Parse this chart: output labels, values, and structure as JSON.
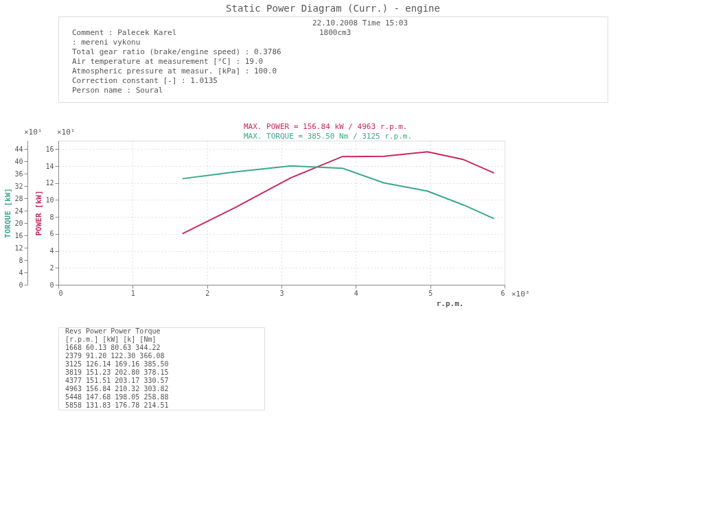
{
  "chart_data": {
    "type": "line",
    "title": "Static Power Diagram (Curr.) - engine",
    "annotations": [
      "22.10.2008   Time 15:03",
      "1800cm3",
      "Comment : Palecek Karel",
      "        : mereni vykonu",
      "Total gear ratio (brake/engine speed) :   0.3786",
      "Air temperature at measurement   [°C] :   19.0",
      "Atmospheric pressure at measur. [kPa] :  100.0",
      "Correction constant              [-] :   1.0135",
      "Person name : Soural",
      "MAX. POWER = 156.84 kW / 4963 r.p.m.",
      "MAX. TORQUE = 385.50 Nm / 3125 r.p.m.",
      "×10¹",
      "×10¹",
      "×10³",
      "   Revs    Power   Power   Torque",
      "[r.p.m.]   [kW]    [k]     [Nm]",
      "   1668   60.13   80.63   344.22",
      "   2379   91.20  122.30   366.08",
      "   3125  126.14  169.16   385.50",
      "   3819  151.23  202.80   378.15",
      "   4377  151.51  203.17   330.57",
      "   4963  156.84  210.32   303.82",
      "   5448  147.68  198.05   258.88",
      "   5858  131.83  176.78   214.51"
    ],
    "xlabel": "r.p.m.",
    "ylabel": "POWER [kW]",
    "y2label": "TORQUE [kW]",
    "x": [
      1.668,
      2.379,
      3.125,
      3.819,
      4.377,
      4.963,
      5.448,
      5.858
    ],
    "series": [
      {
        "color": "#c8285a",
        "values": [
          6.013,
          9.12,
          12.614,
          15.123,
          15.151,
          15.684,
          14.768,
          13.183
        ]
      },
      {
        "color": "#3aa88a",
        "axis": "y2",
        "values": [
          34.422,
          36.608,
          38.55,
          37.815,
          33.057,
          30.382,
          25.888,
          21.451
        ]
      }
    ],
    "xlim": [
      0,
      6
    ],
    "xticks": [
      0,
      1,
      2,
      3,
      4,
      5,
      6
    ],
    "ylim": [
      0,
      17
    ],
    "yticks": [
      0,
      2,
      4,
      6,
      8,
      10,
      12,
      14,
      16
    ],
    "y2lim": [
      0,
      46.75
    ],
    "y2ticks": [
      0,
      4,
      8,
      12,
      16,
      20,
      24,
      28,
      32,
      36,
      40,
      44
    ],
    "grid": true,
    "line_style": "solid"
  }
}
